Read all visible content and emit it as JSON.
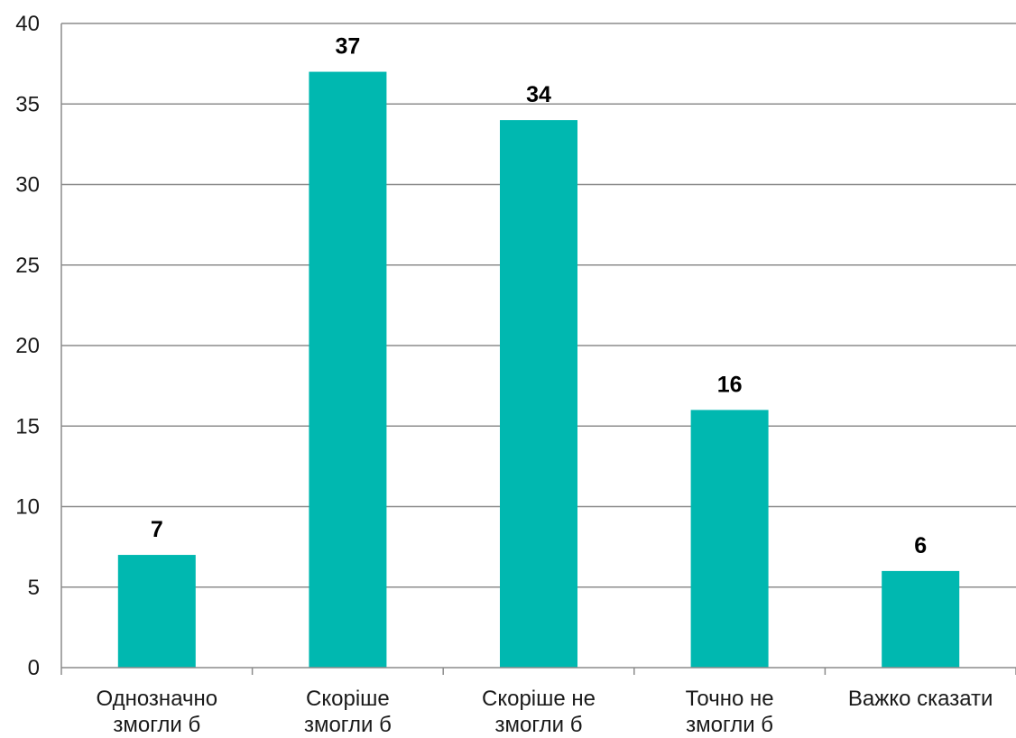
{
  "chart_data": {
    "type": "bar",
    "categories": [
      [
        "Однозначно",
        "змогли б"
      ],
      [
        "Скоріше",
        "змогли б"
      ],
      [
        "Скоріше не",
        "змогли б"
      ],
      [
        "Точно не",
        "змогли б"
      ],
      [
        "Важко сказати"
      ]
    ],
    "values": [
      7,
      37,
      34,
      16,
      6
    ],
    "data_labels": [
      "7",
      "37",
      "34",
      "16",
      "6"
    ],
    "ylim": [
      0,
      40
    ],
    "yticks": [
      0,
      5,
      10,
      15,
      20,
      25,
      30,
      35,
      40
    ],
    "grid": true,
    "bar_color": "#00B8B0",
    "grid_color": "#8c8c8c",
    "title": "",
    "xlabel": "",
    "ylabel": ""
  }
}
